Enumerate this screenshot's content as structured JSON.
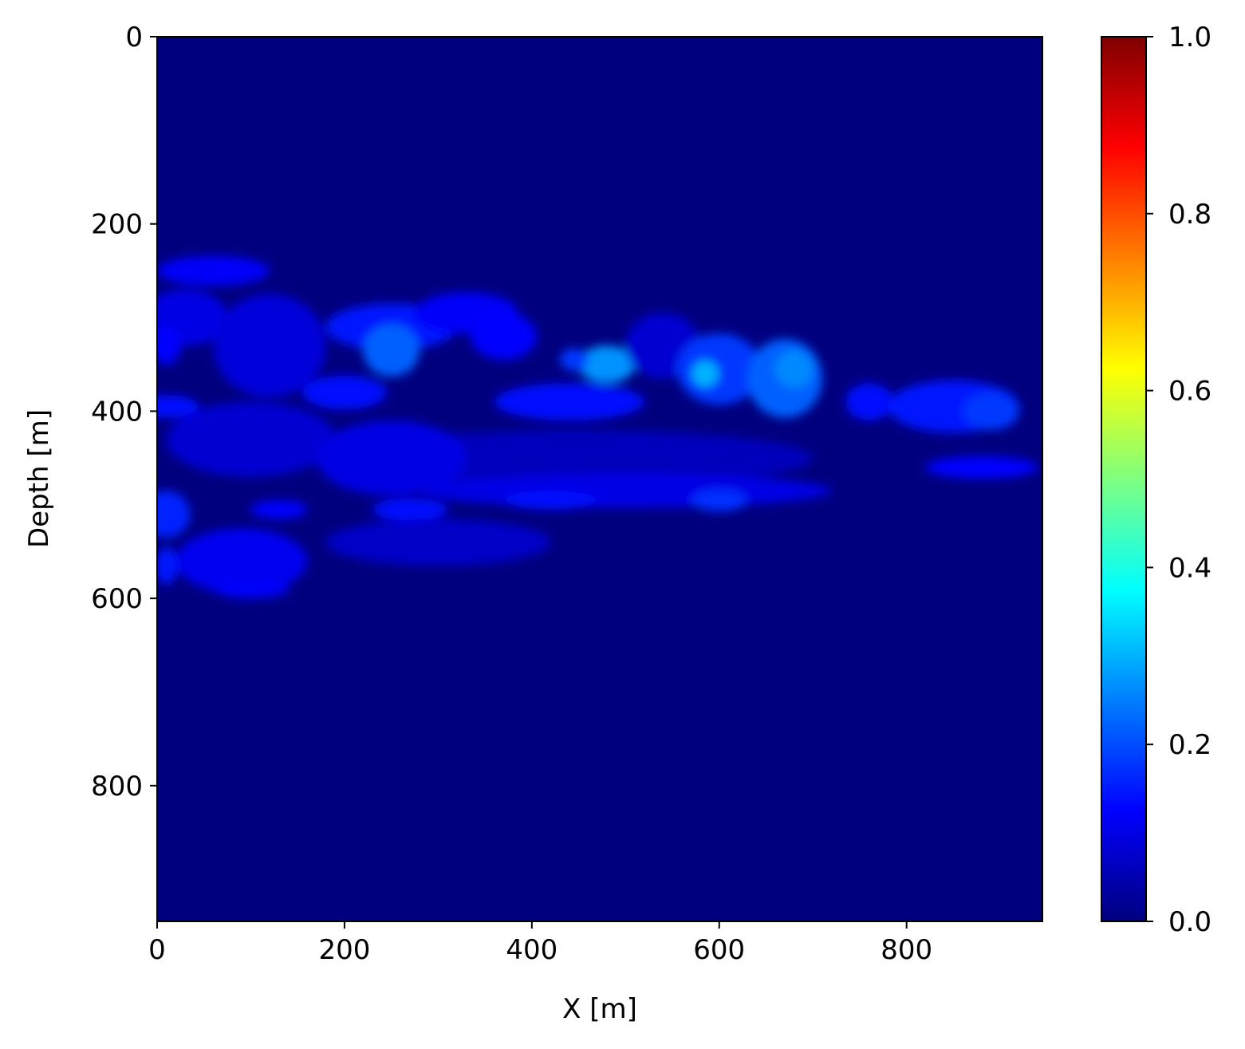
{
  "chart_data": {
    "type": "heatmap",
    "title": "",
    "xlabel": "X [m]",
    "ylabel": "Depth [m]",
    "xlim": [
      0,
      945
    ],
    "ylim": [
      945,
      0
    ],
    "x_ticks": [
      0,
      200,
      400,
      600,
      800
    ],
    "y_ticks": [
      0,
      200,
      400,
      600,
      800
    ],
    "colormap": "jet",
    "colorbar": {
      "range": [
        0.0,
        1.0
      ],
      "ticks": [
        "0.0",
        "0.2",
        "0.4",
        "0.6",
        "0.8",
        "1.0"
      ],
      "colors": [
        "#00007f",
        "#0000ff",
        "#007fff",
        "#00ffff",
        "#7fff7f",
        "#ffff00",
        "#ff7f00",
        "#ff0000",
        "#7f0000"
      ]
    },
    "background_value": 0.0,
    "features": [
      {
        "x": 60,
        "depth": 250,
        "rx": 60,
        "ry": 16,
        "value": 0.12
      },
      {
        "x": 30,
        "depth": 300,
        "rx": 45,
        "ry": 30,
        "value": 0.1
      },
      {
        "x": 10,
        "depth": 330,
        "rx": 15,
        "ry": 20,
        "value": 0.13
      },
      {
        "x": 10,
        "depth": 395,
        "rx": 35,
        "ry": 12,
        "value": 0.14
      },
      {
        "x": 120,
        "depth": 330,
        "rx": 60,
        "ry": 55,
        "value": 0.09
      },
      {
        "x": 100,
        "depth": 430,
        "rx": 90,
        "ry": 40,
        "value": 0.08
      },
      {
        "x": 250,
        "depth": 310,
        "rx": 70,
        "ry": 25,
        "value": 0.15
      },
      {
        "x": 250,
        "depth": 335,
        "rx": 30,
        "ry": 28,
        "value": 0.22
      },
      {
        "x": 330,
        "depth": 295,
        "rx": 55,
        "ry": 22,
        "value": 0.12
      },
      {
        "x": 370,
        "depth": 320,
        "rx": 35,
        "ry": 25,
        "value": 0.13
      },
      {
        "x": 200,
        "depth": 380,
        "rx": 45,
        "ry": 18,
        "value": 0.14
      },
      {
        "x": 440,
        "depth": 390,
        "rx": 80,
        "ry": 20,
        "value": 0.14
      },
      {
        "x": 480,
        "depth": 350,
        "rx": 30,
        "ry": 20,
        "value": 0.27
      },
      {
        "x": 445,
        "depth": 345,
        "rx": 15,
        "ry": 12,
        "value": 0.18
      },
      {
        "x": 540,
        "depth": 330,
        "rx": 40,
        "ry": 35,
        "value": 0.08
      },
      {
        "x": 600,
        "depth": 355,
        "rx": 45,
        "ry": 38,
        "value": 0.18
      },
      {
        "x": 585,
        "depth": 360,
        "rx": 14,
        "ry": 14,
        "value": 0.3
      },
      {
        "x": 670,
        "depth": 365,
        "rx": 40,
        "ry": 42,
        "value": 0.22
      },
      {
        "x": 680,
        "depth": 355,
        "rx": 20,
        "ry": 20,
        "value": 0.26
      },
      {
        "x": 760,
        "depth": 390,
        "rx": 25,
        "ry": 20,
        "value": 0.14
      },
      {
        "x": 850,
        "depth": 395,
        "rx": 70,
        "ry": 28,
        "value": 0.15
      },
      {
        "x": 890,
        "depth": 400,
        "rx": 30,
        "ry": 20,
        "value": 0.18
      },
      {
        "x": 880,
        "depth": 460,
        "rx": 60,
        "ry": 12,
        "value": 0.13
      },
      {
        "x": 450,
        "depth": 450,
        "rx": 250,
        "ry": 30,
        "value": 0.06
      },
      {
        "x": 500,
        "depth": 485,
        "rx": 220,
        "ry": 18,
        "value": 0.1
      },
      {
        "x": 600,
        "depth": 495,
        "rx": 30,
        "ry": 12,
        "value": 0.17
      },
      {
        "x": 420,
        "depth": 495,
        "rx": 50,
        "ry": 10,
        "value": 0.14
      },
      {
        "x": 270,
        "depth": 505,
        "rx": 40,
        "ry": 12,
        "value": 0.14
      },
      {
        "x": 130,
        "depth": 505,
        "rx": 30,
        "ry": 10,
        "value": 0.13
      },
      {
        "x": 10,
        "depth": 510,
        "rx": 25,
        "ry": 25,
        "value": 0.16
      },
      {
        "x": 90,
        "depth": 560,
        "rx": 70,
        "ry": 35,
        "value": 0.11
      },
      {
        "x": 10,
        "depth": 565,
        "rx": 12,
        "ry": 20,
        "value": 0.15
      },
      {
        "x": 100,
        "depth": 590,
        "rx": 40,
        "ry": 10,
        "value": 0.12
      },
      {
        "x": 300,
        "depth": 540,
        "rx": 120,
        "ry": 25,
        "value": 0.07
      },
      {
        "x": 250,
        "depth": 450,
        "rx": 80,
        "ry": 40,
        "value": 0.1
      }
    ]
  }
}
